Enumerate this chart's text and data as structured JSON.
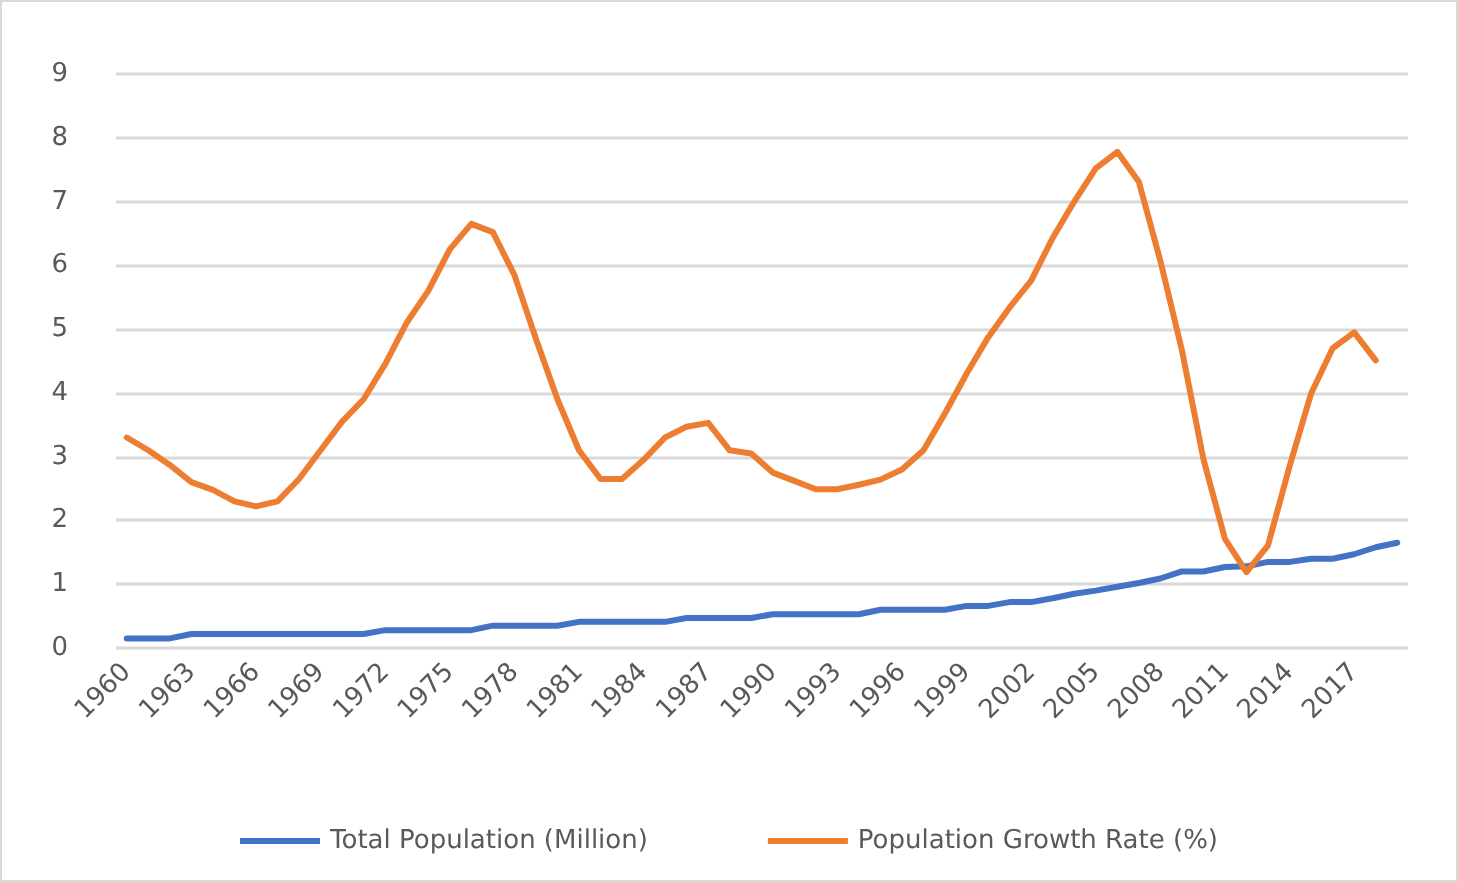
{
  "chart_data": {
    "type": "line",
    "categories": [
      "1960",
      null,
      null,
      "1963",
      null,
      null,
      "1966",
      null,
      null,
      "1969",
      null,
      null,
      "1972",
      null,
      null,
      "1975",
      null,
      null,
      "1978",
      null,
      null,
      "1981",
      null,
      null,
      "1984",
      null,
      null,
      "1987",
      null,
      null,
      "1990",
      null,
      null,
      "1993",
      null,
      null,
      "1996",
      null,
      null,
      "1999",
      null,
      null,
      "2002",
      null,
      null,
      "2005",
      null,
      null,
      "2008",
      null,
      null,
      "2011",
      null,
      null,
      "2014",
      null,
      null,
      "2017",
      null,
      null
    ],
    "series": [
      {
        "name": "Total Population (Million)",
        "color": "#4472c4",
        "values": [
          0.15,
          0.15,
          0.15,
          0.22,
          0.22,
          0.22,
          0.22,
          0.22,
          0.22,
          0.22,
          0.22,
          0.22,
          0.28,
          0.28,
          0.28,
          0.28,
          0.28,
          0.35,
          0.35,
          0.35,
          0.35,
          0.41,
          0.41,
          0.41,
          0.41,
          0.41,
          0.47,
          0.47,
          0.47,
          0.47,
          0.53,
          0.53,
          0.53,
          0.53,
          0.53,
          0.6,
          0.6,
          0.6,
          0.6,
          0.66,
          0.66,
          0.72,
          0.72,
          0.78,
          0.85,
          0.9,
          0.96,
          1.02,
          1.09,
          1.2,
          1.2,
          1.27,
          1.28,
          1.35,
          1.35,
          1.4,
          1.4,
          1.47,
          1.58,
          1.65
        ]
      },
      {
        "name": "Population Growth Rate (%)",
        "color": "#ed7d31",
        "values": [
          3.3,
          3.1,
          2.87,
          2.6,
          2.48,
          2.3,
          2.22,
          2.3,
          2.65,
          3.1,
          3.55,
          3.9,
          4.45,
          5.1,
          5.6,
          6.25,
          6.65,
          6.52,
          5.85,
          4.85,
          3.9,
          3.1,
          2.65,
          2.65,
          2.95,
          3.3,
          3.47,
          3.53,
          3.1,
          3.05,
          2.75,
          2.62,
          2.49,
          2.49,
          2.56,
          2.64,
          2.8,
          3.1,
          3.68,
          4.3,
          4.87,
          5.34,
          5.76,
          6.43,
          7.0,
          7.52,
          7.78,
          7.31,
          6.07,
          4.67,
          2.96,
          1.71,
          1.19,
          1.61,
          2.85,
          3.99,
          4.7,
          4.95,
          4.51,
          null
        ]
      }
    ],
    "ylim": [
      0,
      9
    ],
    "yticks": [
      0,
      1,
      2,
      3,
      4,
      5,
      6,
      7,
      8,
      9
    ],
    "grid": "y",
    "legend": "bottom",
    "marker": "none",
    "line_style": "solid"
  }
}
